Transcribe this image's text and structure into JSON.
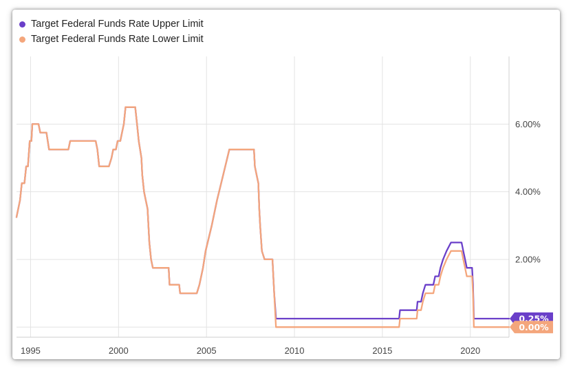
{
  "chart_data": {
    "type": "line",
    "title": "",
    "xlabel": "",
    "ylabel": "",
    "xlim": [
      1994.2,
      2022.2
    ],
    "ylim": [
      -0.3,
      8.0
    ],
    "x_ticks": [
      1995,
      2000,
      2005,
      2010,
      2015,
      2020
    ],
    "x_tick_labels": [
      "1995",
      "2000",
      "2005",
      "2010",
      "2015",
      "2020"
    ],
    "y_ticks": [
      2,
      4,
      6
    ],
    "y_tick_labels": [
      "2.00%",
      "4.00%",
      "6.00%"
    ],
    "grid": true,
    "legend_position": "top-left",
    "series": [
      {
        "name": "Target Federal Funds Rate Upper Limit",
        "color": "#6a3fc9",
        "end_label": "0.25%",
        "points": [
          [
            1994.2,
            3.25
          ],
          [
            1994.4,
            3.75
          ],
          [
            1994.5,
            4.25
          ],
          [
            1994.65,
            4.25
          ],
          [
            1994.75,
            4.75
          ],
          [
            1994.85,
            4.75
          ],
          [
            1994.95,
            5.5
          ],
          [
            1995.05,
            5.5
          ],
          [
            1995.1,
            6.0
          ],
          [
            1995.45,
            6.0
          ],
          [
            1995.55,
            5.75
          ],
          [
            1995.9,
            5.75
          ],
          [
            1996.05,
            5.25
          ],
          [
            1997.15,
            5.25
          ],
          [
            1997.25,
            5.5
          ],
          [
            1998.7,
            5.5
          ],
          [
            1998.8,
            5.25
          ],
          [
            1998.9,
            4.75
          ],
          [
            1999.45,
            4.75
          ],
          [
            1999.6,
            5.0
          ],
          [
            1999.7,
            5.25
          ],
          [
            1999.85,
            5.25
          ],
          [
            1999.95,
            5.5
          ],
          [
            2000.1,
            5.5
          ],
          [
            2000.2,
            5.75
          ],
          [
            2000.3,
            6.0
          ],
          [
            2000.4,
            6.5
          ],
          [
            2000.95,
            6.5
          ],
          [
            2001.05,
            6.0
          ],
          [
            2001.15,
            5.5
          ],
          [
            2001.3,
            5.0
          ],
          [
            2001.35,
            4.5
          ],
          [
            2001.45,
            4.0
          ],
          [
            2001.55,
            3.75
          ],
          [
            2001.65,
            3.5
          ],
          [
            2001.7,
            3.0
          ],
          [
            2001.75,
            2.5
          ],
          [
            2001.85,
            2.0
          ],
          [
            2001.95,
            1.75
          ],
          [
            2002.85,
            1.75
          ],
          [
            2002.9,
            1.25
          ],
          [
            2003.45,
            1.25
          ],
          [
            2003.5,
            1.0
          ],
          [
            2004.45,
            1.0
          ],
          [
            2004.6,
            1.25
          ],
          [
            2004.7,
            1.5
          ],
          [
            2004.8,
            1.75
          ],
          [
            2004.95,
            2.25
          ],
          [
            2005.3,
            3.0
          ],
          [
            2005.6,
            3.75
          ],
          [
            2005.95,
            4.5
          ],
          [
            2006.3,
            5.25
          ],
          [
            2007.7,
            5.25
          ],
          [
            2007.75,
            4.75
          ],
          [
            2007.85,
            4.5
          ],
          [
            2007.95,
            4.25
          ],
          [
            2008.0,
            3.5
          ],
          [
            2008.05,
            3.0
          ],
          [
            2008.15,
            2.25
          ],
          [
            2008.3,
            2.0
          ],
          [
            2008.75,
            2.0
          ],
          [
            2008.85,
            1.0
          ],
          [
            2008.95,
            0.25
          ],
          [
            2015.95,
            0.25
          ],
          [
            2016.0,
            0.5
          ],
          [
            2016.95,
            0.5
          ],
          [
            2017.0,
            0.75
          ],
          [
            2017.2,
            0.75
          ],
          [
            2017.3,
            1.0
          ],
          [
            2017.45,
            1.25
          ],
          [
            2017.9,
            1.25
          ],
          [
            2018.0,
            1.5
          ],
          [
            2018.2,
            1.5
          ],
          [
            2018.3,
            1.75
          ],
          [
            2018.45,
            2.0
          ],
          [
            2018.65,
            2.25
          ],
          [
            2018.9,
            2.5
          ],
          [
            2019.5,
            2.5
          ],
          [
            2019.6,
            2.25
          ],
          [
            2019.7,
            2.0
          ],
          [
            2019.8,
            1.75
          ],
          [
            2020.1,
            1.75
          ],
          [
            2020.15,
            1.25
          ],
          [
            2020.2,
            0.25
          ],
          [
            2022.2,
            0.25
          ]
        ]
      },
      {
        "name": "Target Federal Funds Rate Lower Limit",
        "color": "#f4a67c",
        "end_label": "0.00%",
        "points": [
          [
            1994.2,
            3.25
          ],
          [
            1994.4,
            3.75
          ],
          [
            1994.5,
            4.25
          ],
          [
            1994.65,
            4.25
          ],
          [
            1994.75,
            4.75
          ],
          [
            1994.85,
            4.75
          ],
          [
            1994.95,
            5.5
          ],
          [
            1995.05,
            5.5
          ],
          [
            1995.1,
            6.0
          ],
          [
            1995.45,
            6.0
          ],
          [
            1995.55,
            5.75
          ],
          [
            1995.9,
            5.75
          ],
          [
            1996.05,
            5.25
          ],
          [
            1997.15,
            5.25
          ],
          [
            1997.25,
            5.5
          ],
          [
            1998.7,
            5.5
          ],
          [
            1998.8,
            5.25
          ],
          [
            1998.9,
            4.75
          ],
          [
            1999.45,
            4.75
          ],
          [
            1999.6,
            5.0
          ],
          [
            1999.7,
            5.25
          ],
          [
            1999.85,
            5.25
          ],
          [
            1999.95,
            5.5
          ],
          [
            2000.1,
            5.5
          ],
          [
            2000.2,
            5.75
          ],
          [
            2000.3,
            6.0
          ],
          [
            2000.4,
            6.5
          ],
          [
            2000.95,
            6.5
          ],
          [
            2001.05,
            6.0
          ],
          [
            2001.15,
            5.5
          ],
          [
            2001.3,
            5.0
          ],
          [
            2001.35,
            4.5
          ],
          [
            2001.45,
            4.0
          ],
          [
            2001.55,
            3.75
          ],
          [
            2001.65,
            3.5
          ],
          [
            2001.7,
            3.0
          ],
          [
            2001.75,
            2.5
          ],
          [
            2001.85,
            2.0
          ],
          [
            2001.95,
            1.75
          ],
          [
            2002.85,
            1.75
          ],
          [
            2002.9,
            1.25
          ],
          [
            2003.45,
            1.25
          ],
          [
            2003.5,
            1.0
          ],
          [
            2004.45,
            1.0
          ],
          [
            2004.6,
            1.25
          ],
          [
            2004.7,
            1.5
          ],
          [
            2004.8,
            1.75
          ],
          [
            2004.95,
            2.25
          ],
          [
            2005.3,
            3.0
          ],
          [
            2005.6,
            3.75
          ],
          [
            2005.95,
            4.5
          ],
          [
            2006.3,
            5.25
          ],
          [
            2007.7,
            5.25
          ],
          [
            2007.75,
            4.75
          ],
          [
            2007.85,
            4.5
          ],
          [
            2007.95,
            4.25
          ],
          [
            2008.0,
            3.5
          ],
          [
            2008.05,
            3.0
          ],
          [
            2008.15,
            2.25
          ],
          [
            2008.3,
            2.0
          ],
          [
            2008.75,
            2.0
          ],
          [
            2008.85,
            1.0
          ],
          [
            2008.95,
            0.0
          ],
          [
            2015.95,
            0.0
          ],
          [
            2016.0,
            0.25
          ],
          [
            2016.95,
            0.25
          ],
          [
            2017.0,
            0.5
          ],
          [
            2017.2,
            0.5
          ],
          [
            2017.3,
            0.75
          ],
          [
            2017.45,
            1.0
          ],
          [
            2017.9,
            1.0
          ],
          [
            2018.0,
            1.25
          ],
          [
            2018.2,
            1.25
          ],
          [
            2018.3,
            1.5
          ],
          [
            2018.45,
            1.75
          ],
          [
            2018.65,
            2.0
          ],
          [
            2018.9,
            2.25
          ],
          [
            2019.5,
            2.25
          ],
          [
            2019.6,
            2.0
          ],
          [
            2019.7,
            1.75
          ],
          [
            2019.8,
            1.5
          ],
          [
            2020.1,
            1.5
          ],
          [
            2020.15,
            1.0
          ],
          [
            2020.2,
            0.0
          ],
          [
            2022.2,
            0.0
          ]
        ]
      }
    ]
  }
}
